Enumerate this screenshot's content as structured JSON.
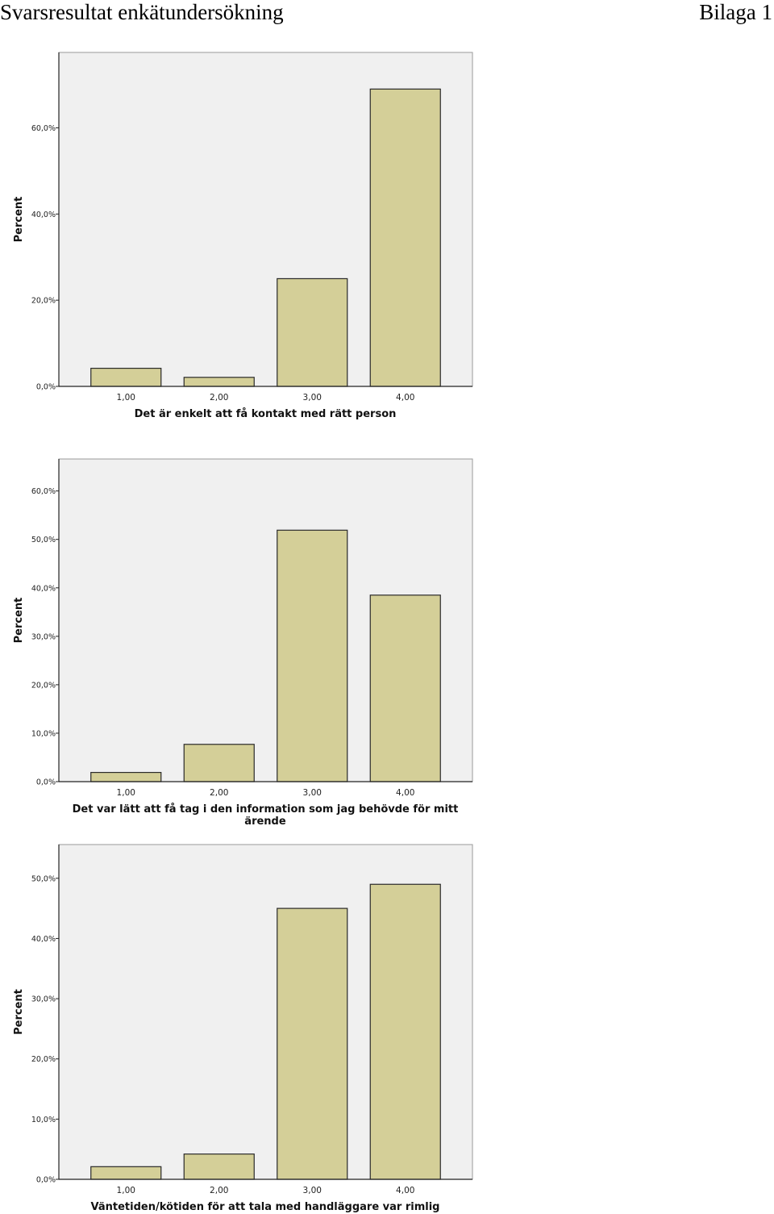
{
  "header": {
    "title": "Svarsresultat enkätundersökning",
    "appendix": "Bilaga 1"
  },
  "colors": {
    "bar_fill": "#d4cf98",
    "bar_stroke": "#2a2a2a",
    "plot_background": "#f0f0f0"
  },
  "chart_data": [
    {
      "type": "bar",
      "categories": [
        "1,00",
        "2,00",
        "3,00",
        "4,00"
      ],
      "values": [
        4.2,
        2.1,
        25.0,
        69.0
      ],
      "xlabel": "Det är enkelt att få kontakt med rätt person",
      "ylabel": "Percent",
      "ylim": [
        0,
        77.5
      ],
      "yticks": [
        0,
        20,
        40,
        60
      ],
      "ytick_labels": [
        "0,0%",
        "20,0%",
        "40,0%",
        "60,0%"
      ],
      "grid": false
    },
    {
      "type": "bar",
      "categories": [
        "1,00",
        "2,00",
        "3,00",
        "4,00"
      ],
      "values": [
        1.9,
        7.7,
        51.9,
        38.5
      ],
      "xlabel": [
        "Det var lätt att få tag i den information som jag behövde för mitt",
        "ärende"
      ],
      "ylabel": "Percent",
      "ylim": [
        0,
        66.6
      ],
      "yticks": [
        0,
        10,
        20,
        30,
        40,
        50,
        60
      ],
      "ytick_labels": [
        "0,0%",
        "10,0%",
        "20,0%",
        "30,0%",
        "40,0%",
        "50,0%",
        "60,0%"
      ],
      "grid": false
    },
    {
      "type": "bar",
      "categories": [
        "1,00",
        "2,00",
        "3,00",
        "4,00"
      ],
      "values": [
        2.1,
        4.2,
        45.0,
        49.0
      ],
      "xlabel": "Väntetiden/kötiden för att tala med handläggare var rimlig",
      "ylabel": "Percent",
      "ylim": [
        0,
        55.6
      ],
      "yticks": [
        0,
        10,
        20,
        30,
        40,
        50
      ],
      "ytick_labels": [
        "0,0%",
        "10,0%",
        "20,0%",
        "30,0%",
        "40,0%",
        "50,0%"
      ],
      "grid": false
    }
  ]
}
